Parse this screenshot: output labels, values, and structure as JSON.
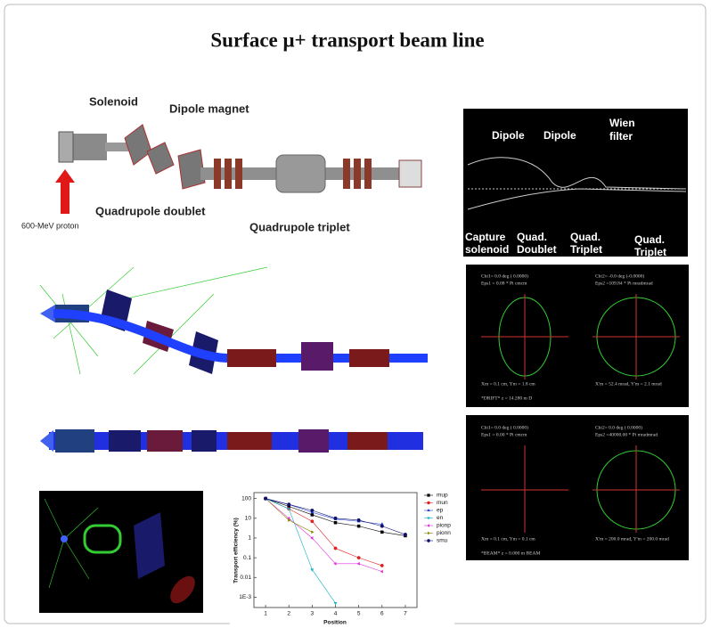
{
  "title": "Surface μ+ transport beam line",
  "beamline": {
    "labels": [
      "Solenoid",
      "Dipole magnet",
      "Quadrupole doublet",
      "Quadrupole triplet",
      "600-MeV  proton"
    ]
  },
  "optics": {
    "labels": [
      [
        "Dipole"
      ],
      [
        "Dipole"
      ],
      [
        "Wien",
        "filter"
      ],
      [
        "Capture",
        "solenoid"
      ],
      [
        "Quad.",
        "Doublet"
      ],
      [
        "Quad.",
        "Triplet"
      ],
      [
        "Quad.",
        "Triplet"
      ]
    ]
  },
  "phase_plots": [
    {
      "chi1": "Chi1=    0.0 deg  ( 0.0000)",
      "eps1": "Eps1 = 0.08 * Pi cmcm",
      "chi2": "Chi2=   -0.0 deg  (-0.0000)",
      "eps2": "Eps2 =109.84 * Pi mradmrad",
      "xm": "Xm =  0.1 cm,   Ym =  1.8 cm",
      "xpm": "X'm =  52.4 mrad,   Y'm =   2.1 mrad",
      "footer": "*DRIFT*      z = 14.280  m    D"
    },
    {
      "chi1": "Chi1=    0.0 deg  ( 0.0000)",
      "eps1": "Eps1 = 0.00 * Pi cmcm",
      "chi2": "Chi2=    0.0 deg  ( 0.0000)",
      "eps2": "Eps2 =40000.00 * Pi mradmrad",
      "xm": "Xm =  0.1 cm,   Ym =  0.1 cm",
      "xpm": "X'm = 200.0 mrad,   Y'm = 200.0 mrad",
      "footer": "*BEAM*      z =  0.000  m    BEAM"
    }
  ],
  "chart_data": {
    "type": "line",
    "x_label": "Position",
    "y_label": "Transport efficiency (%)",
    "x": [
      1,
      2,
      3,
      4,
      5,
      6,
      7
    ],
    "xlim": [
      0.5,
      7.5
    ],
    "xticks": [
      1,
      2,
      3,
      4,
      5,
      6,
      7
    ],
    "ylim": [
      0.0003,
      200
    ],
    "log_y": true,
    "yticks": [
      100,
      10,
      1,
      0.1,
      0.01,
      {
        "value": 0.001,
        "label": "1E-3"
      }
    ],
    "legend": "upper right",
    "series": [
      {
        "name": "mup",
        "color": "#000000",
        "marker": "square",
        "values": [
          100,
          40,
          15,
          6,
          4,
          2,
          1.3
        ]
      },
      {
        "name": "mun",
        "color": "#e02020",
        "marker": "circle",
        "values": [
          100,
          30,
          7,
          0.3,
          0.1,
          0.04,
          null
        ]
      },
      {
        "name": "ep",
        "color": "#1f3fd0",
        "marker": "triangle-up",
        "values": [
          100,
          50,
          20,
          9,
          7,
          5,
          null
        ]
      },
      {
        "name": "en",
        "color": "#10b0c8",
        "marker": "triangle-down",
        "values": [
          100,
          30,
          0.025,
          0.0005,
          null,
          null,
          null
        ]
      },
      {
        "name": "pionp",
        "color": "#e030e0",
        "marker": "triangle-left",
        "values": [
          100,
          10,
          1,
          0.05,
          0.05,
          0.02,
          null
        ]
      },
      {
        "name": "pionn",
        "color": "#8a8a00",
        "marker": "triangle-right",
        "values": [
          100,
          8,
          2,
          null,
          null,
          null,
          null
        ]
      },
      {
        "name": "smu",
        "color": "#101070",
        "marker": "hexagon",
        "values": [
          100,
          50,
          25,
          10,
          8,
          4,
          1.5
        ]
      }
    ]
  }
}
